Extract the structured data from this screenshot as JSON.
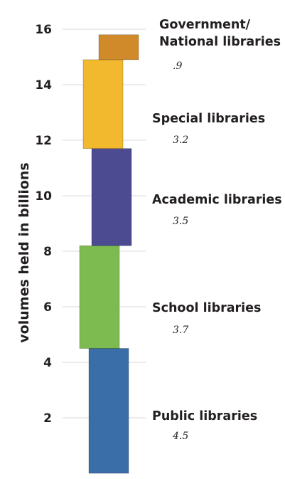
{
  "chart_data": {
    "type": "bar",
    "orientation": "vertical-stacked",
    "ylabel": "volumes held in billions",
    "ylim": [
      0,
      16.6
    ],
    "yticks": [
      2,
      4,
      6,
      8,
      10,
      12,
      14,
      16
    ],
    "ytick_labels": [
      "2",
      "4",
      "6",
      "8",
      "10",
      "12",
      "14",
      "16"
    ],
    "grid": true,
    "series": [
      {
        "name": "Public libraries",
        "value": 4.5,
        "value_label": "4.5",
        "color": "#3a6ea8"
      },
      {
        "name": "School libraries",
        "value": 3.7,
        "value_label": "3.7",
        "color": "#7dbb50"
      },
      {
        "name": "Academic libraries",
        "value": 3.5,
        "value_label": "3.5",
        "color": "#4c4a91"
      },
      {
        "name": "Special libraries",
        "value": 3.2,
        "value_label": "3.2",
        "color": "#f2b92e"
      },
      {
        "name": "Government/\nNational libraries",
        "value": 0.9,
        "value_label": ".9",
        "color": "#d08a2a"
      }
    ]
  }
}
